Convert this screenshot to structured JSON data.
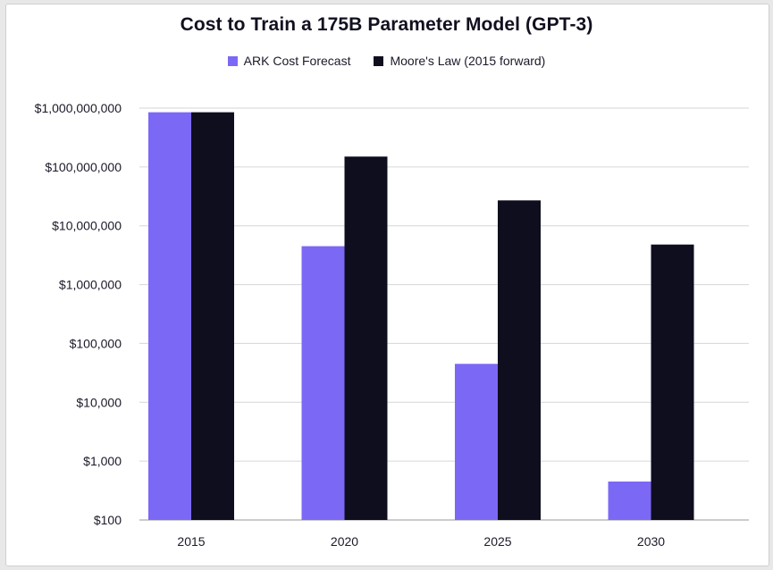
{
  "chart_data": {
    "type": "bar",
    "title": "Cost to Train a 175B Parameter Model (GPT-3)",
    "xlabel": "",
    "ylabel": "",
    "yscale": "log",
    "ylim": [
      100,
      1000000000
    ],
    "yticks": [
      100,
      1000,
      10000,
      100000,
      1000000,
      10000000,
      100000000,
      1000000000
    ],
    "ytick_labels": [
      "$100",
      "$1,000",
      "$10,000",
      "$100,000",
      "$1,000,000",
      "$10,000,000",
      "$100,000,000",
      "$1,000,000,000"
    ],
    "categories": [
      "2015",
      "2020",
      "2025",
      "2030"
    ],
    "grid": true,
    "legend_position": "top-center",
    "series": [
      {
        "name": "ARK Cost Forecast",
        "color": "#7b68f5",
        "values": [
          850000000,
          4500000,
          45000,
          450
        ]
      },
      {
        "name": "Moore's Law (2015 forward)",
        "color": "#0e0e1f",
        "values": [
          850000000,
          150000000,
          27000000,
          4800000
        ]
      }
    ]
  }
}
